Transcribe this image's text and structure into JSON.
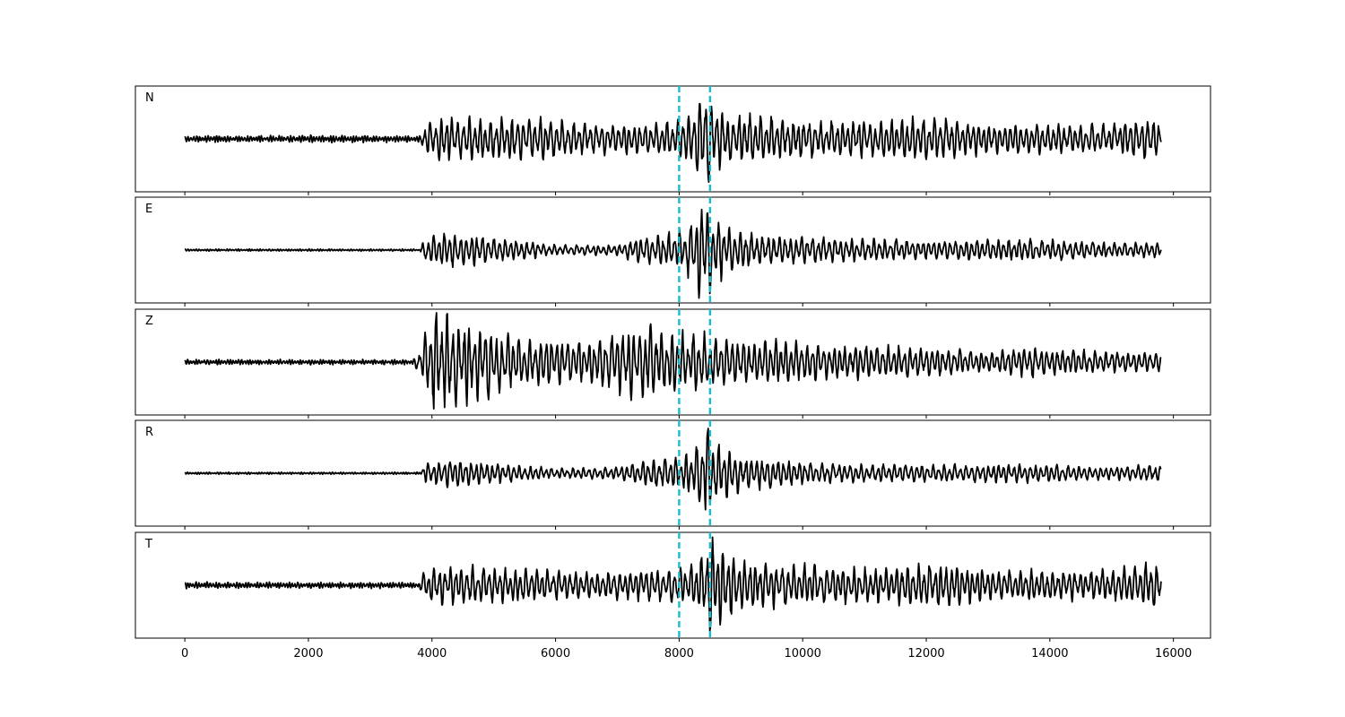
{
  "chart_data": {
    "type": "line",
    "x_axis": {
      "range": [
        -800,
        16600
      ],
      "ticks": [
        0,
        2000,
        4000,
        6000,
        8000,
        10000,
        12000,
        14000,
        16000
      ],
      "tick_labels": [
        "0",
        "2000",
        "4000",
        "6000",
        "8000",
        "10000",
        "12000",
        "14000",
        "16000"
      ]
    },
    "series_x_range": [
      0,
      15800
    ],
    "markers": {
      "color": "#17becf",
      "style": "dashed",
      "x": [
        8000,
        8500
      ]
    },
    "panels": [
      {
        "label": "N",
        "envelope": [
          [
            0,
            0.06
          ],
          [
            500,
            0.07
          ],
          [
            1000,
            0.06
          ],
          [
            2000,
            0.07
          ],
          [
            3000,
            0.07
          ],
          [
            3800,
            0.06
          ],
          [
            3900,
            0.35
          ],
          [
            4200,
            0.45
          ],
          [
            5000,
            0.4
          ],
          [
            5600,
            0.45
          ],
          [
            6500,
            0.3
          ],
          [
            7500,
            0.3
          ],
          [
            7900,
            0.35
          ],
          [
            8200,
            0.55
          ],
          [
            8400,
            1.0
          ],
          [
            8550,
            0.7
          ],
          [
            8800,
            0.45
          ],
          [
            9200,
            0.5
          ],
          [
            10000,
            0.35
          ],
          [
            11000,
            0.35
          ],
          [
            12200,
            0.45
          ],
          [
            13000,
            0.3
          ],
          [
            14000,
            0.3
          ],
          [
            15000,
            0.28
          ],
          [
            15600,
            0.45
          ],
          [
            15800,
            0.35
          ]
        ]
      },
      {
        "label": "E",
        "envelope": [
          [
            0,
            0.02
          ],
          [
            3800,
            0.02
          ],
          [
            3900,
            0.25
          ],
          [
            4300,
            0.35
          ],
          [
            5000,
            0.25
          ],
          [
            6000,
            0.1
          ],
          [
            7000,
            0.1
          ],
          [
            7300,
            0.25
          ],
          [
            7700,
            0.3
          ],
          [
            8000,
            0.4
          ],
          [
            8200,
            0.6
          ],
          [
            8400,
            1.0
          ],
          [
            8550,
            0.7
          ],
          [
            8800,
            0.45
          ],
          [
            9300,
            0.3
          ],
          [
            10500,
            0.25
          ],
          [
            12000,
            0.18
          ],
          [
            13700,
            0.22
          ],
          [
            15000,
            0.15
          ],
          [
            15800,
            0.15
          ]
        ]
      },
      {
        "label": "Z",
        "envelope": [
          [
            0,
            0.05
          ],
          [
            3700,
            0.05
          ],
          [
            3850,
            0.4
          ],
          [
            4000,
            1.0
          ],
          [
            4400,
            0.9
          ],
          [
            4600,
            0.8
          ],
          [
            5200,
            0.55
          ],
          [
            5800,
            0.5
          ],
          [
            6500,
            0.4
          ],
          [
            7200,
            0.7
          ],
          [
            7500,
            0.75
          ],
          [
            8000,
            0.6
          ],
          [
            8500,
            0.55
          ],
          [
            8700,
            0.45
          ],
          [
            9500,
            0.45
          ],
          [
            10500,
            0.35
          ],
          [
            12000,
            0.3
          ],
          [
            13000,
            0.2
          ],
          [
            13700,
            0.3
          ],
          [
            15000,
            0.2
          ],
          [
            15800,
            0.2
          ]
        ]
      },
      {
        "label": "R",
        "envelope": [
          [
            0,
            0.02
          ],
          [
            3800,
            0.02
          ],
          [
            3900,
            0.2
          ],
          [
            4300,
            0.3
          ],
          [
            5000,
            0.2
          ],
          [
            6000,
            0.1
          ],
          [
            7000,
            0.12
          ],
          [
            7400,
            0.25
          ],
          [
            7800,
            0.3
          ],
          [
            8100,
            0.35
          ],
          [
            8300,
            0.6
          ],
          [
            8450,
            1.0
          ],
          [
            8600,
            0.65
          ],
          [
            9000,
            0.35
          ],
          [
            10000,
            0.22
          ],
          [
            11000,
            0.18
          ],
          [
            12000,
            0.18
          ],
          [
            13700,
            0.18
          ],
          [
            15000,
            0.12
          ],
          [
            15700,
            0.18
          ],
          [
            15800,
            0.15
          ]
        ]
      },
      {
        "label": "T",
        "envelope": [
          [
            0,
            0.06
          ],
          [
            1000,
            0.06
          ],
          [
            3000,
            0.06
          ],
          [
            3800,
            0.06
          ],
          [
            3900,
            0.35
          ],
          [
            4400,
            0.4
          ],
          [
            5000,
            0.35
          ],
          [
            5600,
            0.35
          ],
          [
            6500,
            0.25
          ],
          [
            7500,
            0.3
          ],
          [
            8000,
            0.35
          ],
          [
            8300,
            0.5
          ],
          [
            8500,
            1.0
          ],
          [
            8700,
            0.8
          ],
          [
            9000,
            0.5
          ],
          [
            10000,
            0.4
          ],
          [
            11000,
            0.35
          ],
          [
            12300,
            0.45
          ],
          [
            13000,
            0.3
          ],
          [
            14000,
            0.3
          ],
          [
            15000,
            0.3
          ],
          [
            15600,
            0.45
          ],
          [
            15800,
            0.35
          ]
        ]
      }
    ]
  }
}
